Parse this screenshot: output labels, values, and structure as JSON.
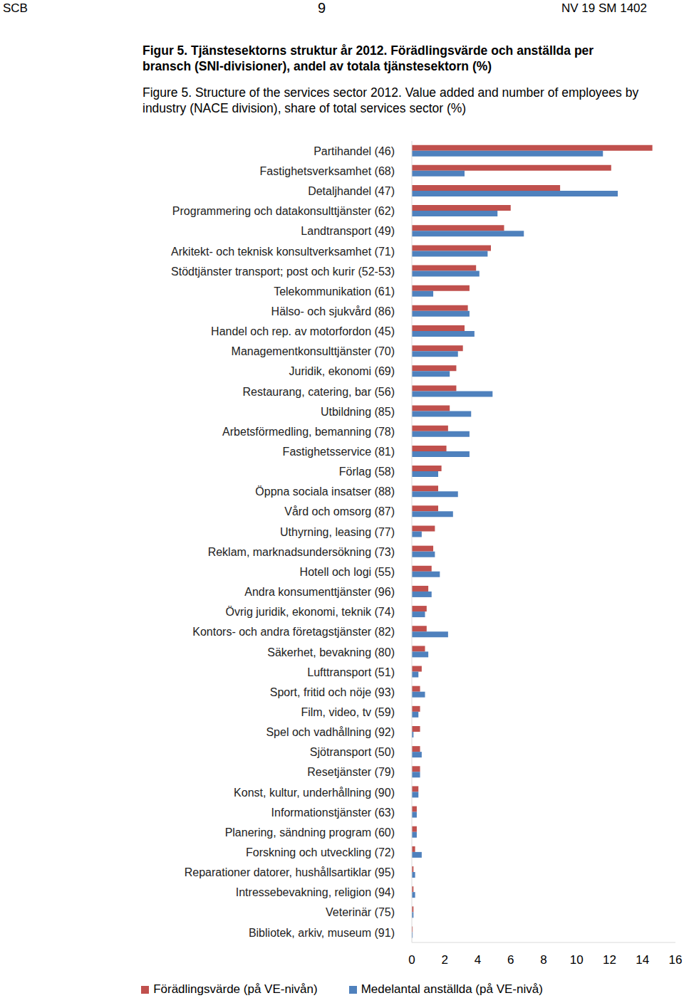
{
  "header": {
    "left": "SCB",
    "center": "9",
    "right": "NV 19 SM 1402"
  },
  "chart_data": {
    "type": "bar",
    "orientation": "horizontal",
    "title": "Figur 5. Tjänstesektorns struktur år 2012. Förädlingsvärde och anställda per bransch (SNI-divisioner), andel av totala tjänstesektorn (%)",
    "subtitle": "Figure 5. Structure of the services sector 2012. Value added and number of employees by industry (NACE division), share of total services sector (%)",
    "categories": [
      "Partihandel (46)",
      "Fastighetsverksamhet (68)",
      "Detaljhandel (47)",
      "Programmering och datakonsulttjänster (62)",
      "Landtransport (49)",
      "Arkitekt- och teknisk konsultverksamhet (71)",
      "Stödtjänster transport; post och kurir (52-53)",
      "Telekommunikation (61)",
      "Hälso- och sjukvård (86)",
      "Handel och rep. av motorfordon (45)",
      "Managementkonsulttjänster (70)",
      "Juridik, ekonomi (69)",
      "Restaurang, catering, bar (56)",
      "Utbildning (85)",
      "Arbetsförmedling, bemanning (78)",
      "Fastighetsservice (81)",
      "Förlag (58)",
      "Öppna sociala insatser (88)",
      "Vård och omsorg (87)",
      "Uthyrning, leasing (77)",
      "Reklam, marknadsundersökning (73)",
      "Hotell och logi (55)",
      "Andra konsumenttjänster (96)",
      "Övrig juridik, ekonomi, teknik (74)",
      "Kontors- och andra företagstjänster (82)",
      "Säkerhet, bevakning (80)",
      "Lufttransport (51)",
      "Sport, fritid och nöje (93)",
      "Film, video, tv (59)",
      "Spel och vadhållning (92)",
      "Sjötransport (50)",
      "Resetjänster (79)",
      "Konst, kultur, underhållning (90)",
      "Informationstjänster (63)",
      "Planering, sändning program (60)",
      "Forskning och utveckling (72)",
      "Reparationer datorer, hushållsartiklar (95)",
      "Intressebevakning, religion (94)",
      "Veterinär (75)",
      "Bibliotek, arkiv, museum (91)"
    ],
    "series": [
      {
        "name": "Förädlingsvärde (på VE-nivån)",
        "color": "#c0504d",
        "values": [
          14.6,
          12.1,
          9.0,
          6.0,
          5.6,
          4.8,
          3.9,
          3.5,
          3.4,
          3.2,
          3.1,
          2.7,
          2.7,
          2.3,
          2.2,
          2.1,
          1.8,
          1.6,
          1.6,
          1.4,
          1.3,
          1.2,
          1.0,
          0.9,
          0.9,
          0.8,
          0.6,
          0.5,
          0.5,
          0.5,
          0.5,
          0.5,
          0.4,
          0.3,
          0.3,
          0.2,
          0.1,
          0.1,
          0.1,
          0.05
        ]
      },
      {
        "name": "Medelantal anställda (på VE-nivå)",
        "color": "#4f81bd",
        "values": [
          11.6,
          3.2,
          12.5,
          5.2,
          6.8,
          4.6,
          4.1,
          1.3,
          3.5,
          3.8,
          2.8,
          2.3,
          4.9,
          3.6,
          3.5,
          3.5,
          1.6,
          2.8,
          2.5,
          0.6,
          1.4,
          1.7,
          1.2,
          0.8,
          2.2,
          1.0,
          0.4,
          0.8,
          0.4,
          0.1,
          0.6,
          0.5,
          0.4,
          0.3,
          0.3,
          0.6,
          0.2,
          0.2,
          0.1,
          0.05
        ]
      }
    ],
    "xlim": [
      0,
      16
    ],
    "xticks": [
      0,
      2,
      4,
      6,
      8,
      10,
      12,
      14,
      16
    ],
    "grid": false,
    "legend": "bottom"
  }
}
